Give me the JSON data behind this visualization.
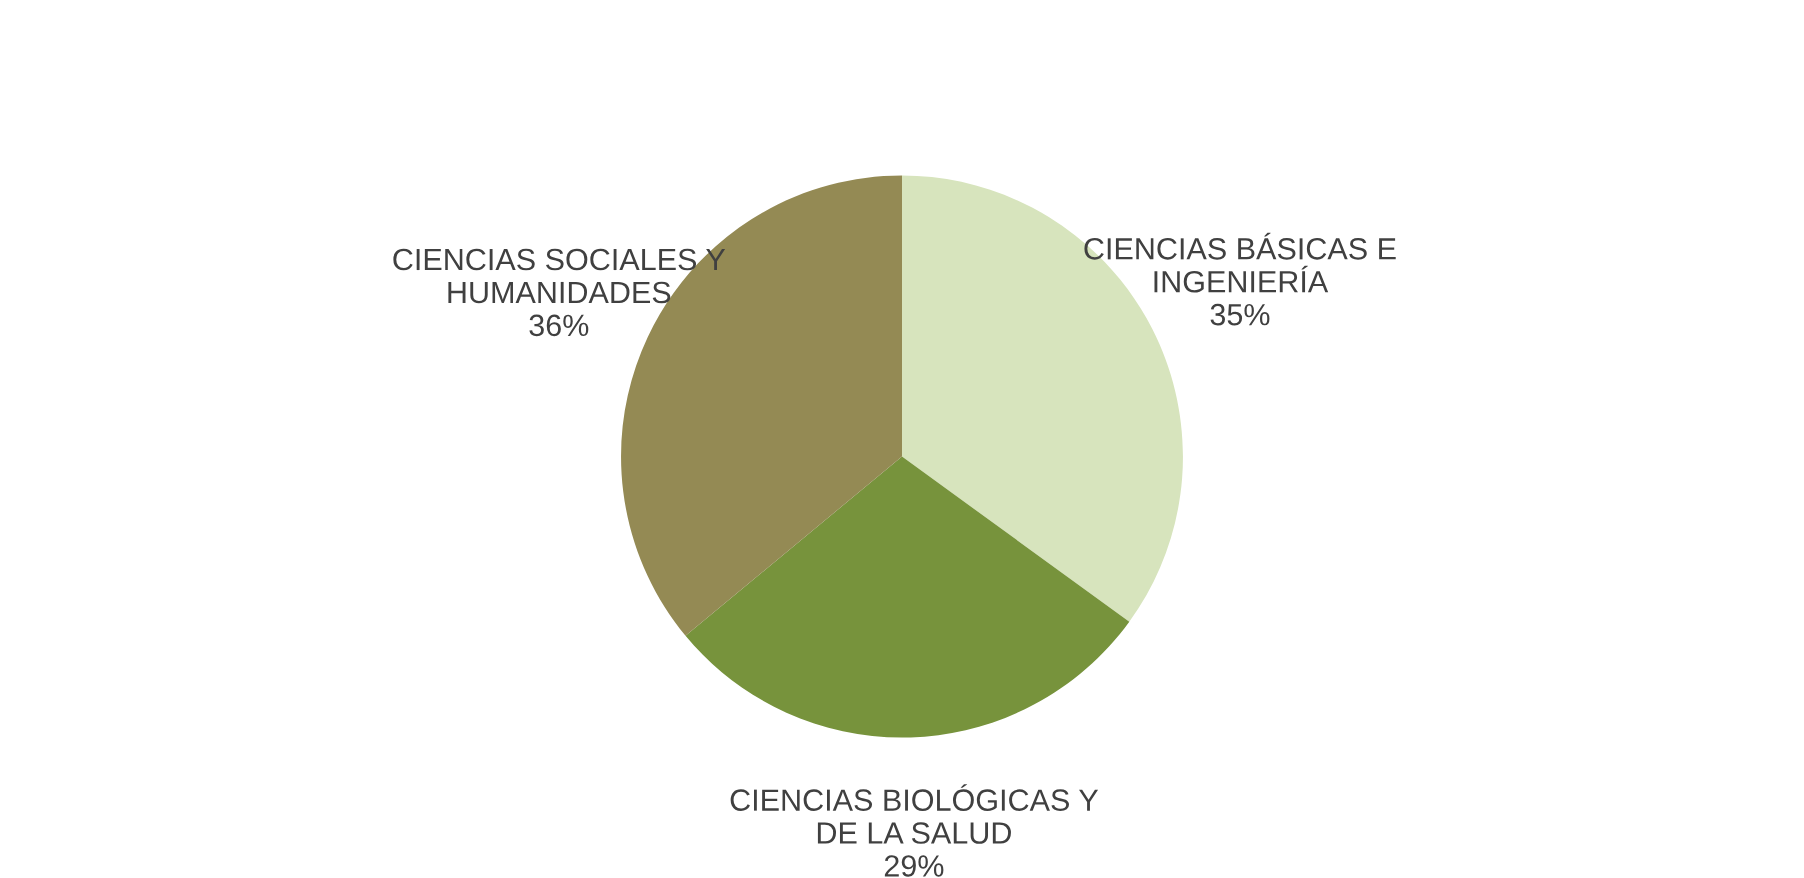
{
  "chart_data": {
    "type": "pie",
    "categories": [
      "CIENCIAS BÁSICAS E\nINGENIERÍA",
      "CIENCIAS BIOLÓGICAS Y\nDE LA SALUD",
      "CIENCIAS SOCIALES Y\nHUMANIDADES"
    ],
    "values": [
      35,
      29,
      36
    ],
    "value_labels": [
      "35%",
      "29%",
      "36%"
    ],
    "colors": [
      "#d7e4bd",
      "#77933c",
      "#948a54"
    ]
  }
}
